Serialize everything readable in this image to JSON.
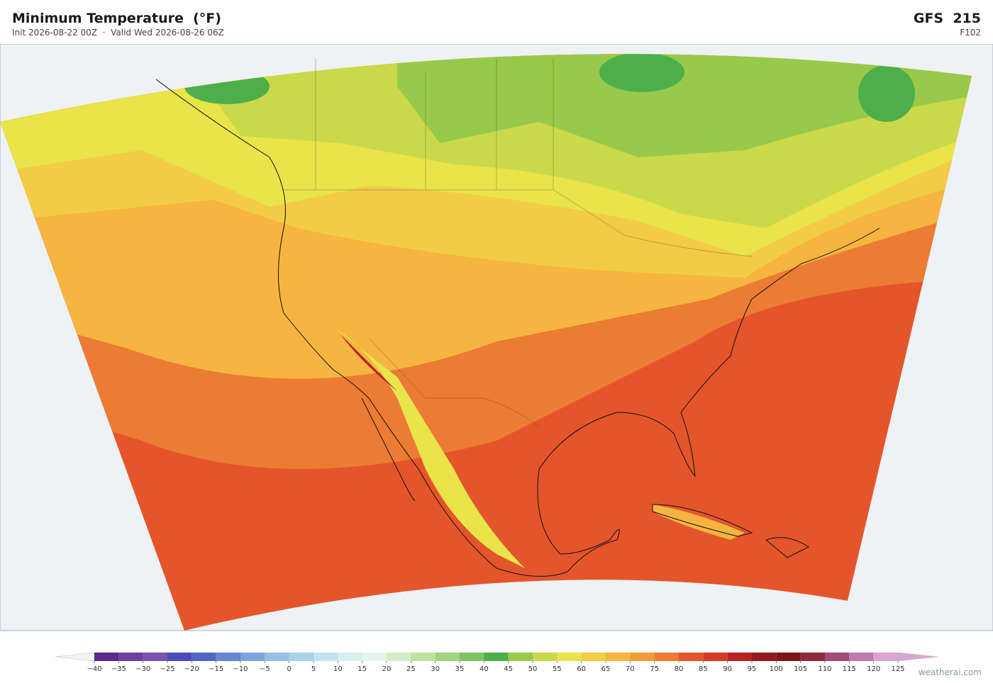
{
  "header": {
    "title": "Minimum Temperature  (°F)",
    "subtitle": "Init 2026-08-22 00Z  ·  Valid Wed 2026-08-26 06Z",
    "model": "GFS  215",
    "forecast_hour": "F102"
  },
  "colorbar": {
    "ticks": [
      {
        "value": -40,
        "label": "−40"
      },
      {
        "value": -35,
        "label": "−35"
      },
      {
        "value": -30,
        "label": "−30"
      },
      {
        "value": -25,
        "label": "−25"
      },
      {
        "value": -20,
        "label": "−20"
      },
      {
        "value": -15,
        "label": "−15"
      },
      {
        "value": -10,
        "label": "−10"
      },
      {
        "value": -5,
        "label": "−5"
      },
      0,
      5,
      10,
      15,
      20,
      25,
      30,
      35,
      40,
      45,
      50,
      55,
      60,
      65,
      70,
      75,
      80,
      85,
      90,
      95,
      100,
      105,
      110,
      115,
      120,
      125
    ],
    "colors": [
      "#5b2a8c",
      "#6d3fa0",
      "#7b52b0",
      "#4a4ab8",
      "#4f66c8",
      "#6688d0",
      "#7fa6dc",
      "#95bfe3",
      "#a9d2ea",
      "#c2e2f0",
      "#d8eef2",
      "#e5f3ec",
      "#d4ecc8",
      "#bde3a0",
      "#9fd480",
      "#7cc463",
      "#4daf4a",
      "#98c94a",
      "#c9d94a",
      "#e8e44a",
      "#f3cc45",
      "#f5b540",
      "#f09a3a",
      "#ec7b33",
      "#e5552b",
      "#d63a26",
      "#b82222",
      "#931a1a",
      "#7d1518",
      "#8e2a3c",
      "#a34a77",
      "#c07aae",
      "#d9a6d2"
    ]
  },
  "credit": "weatherai.com"
}
